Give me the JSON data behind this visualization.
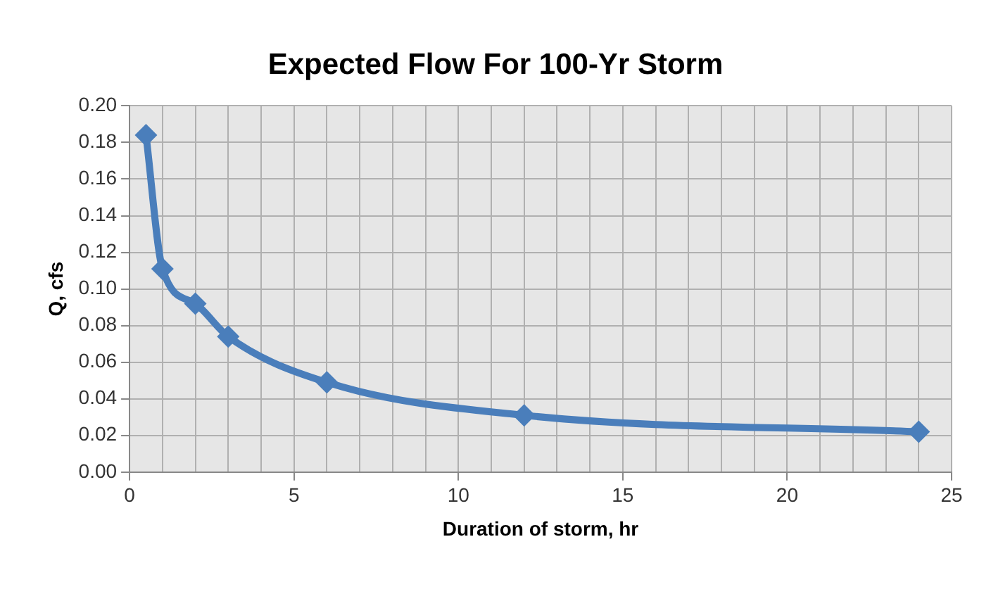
{
  "chart_data": {
    "type": "line",
    "title": "Expected Flow For 100-Yr Storm",
    "xlabel": "Duration of storm, hr",
    "ylabel": "Q, cfs",
    "x": [
      0.5,
      1,
      2,
      3,
      6,
      12,
      24
    ],
    "series": [
      {
        "color": "#4a7ebb",
        "values": [
          0.184,
          0.111,
          0.092,
          0.074,
          0.049,
          0.031,
          0.022
        ]
      }
    ],
    "xlim": [
      0,
      25
    ],
    "xticks": [
      0,
      {
        "value": 1,
        "label": null
      },
      {
        "value": 2,
        "label": null
      },
      {
        "value": 3,
        "label": null
      },
      {
        "value": 4,
        "label": null
      },
      5,
      {
        "value": 6,
        "label": null
      },
      {
        "value": 7,
        "label": null
      },
      {
        "value": 8,
        "label": null
      },
      {
        "value": 9,
        "label": null
      },
      10,
      {
        "value": 11,
        "label": null
      },
      {
        "value": 12,
        "label": null
      },
      {
        "value": 13,
        "label": null
      },
      {
        "value": 14,
        "label": null
      },
      15,
      {
        "value": 16,
        "label": null
      },
      {
        "value": 17,
        "label": null
      },
      {
        "value": 18,
        "label": null
      },
      {
        "value": 19,
        "label": null
      },
      20,
      {
        "value": 21,
        "label": null
      },
      {
        "value": 22,
        "label": null
      },
      {
        "value": 23,
        "label": null
      },
      {
        "value": 24,
        "label": null
      },
      25
    ],
    "ylim": [
      0,
      0.2
    ],
    "yticks": [
      {
        "value": 0,
        "label": "0.00"
      },
      {
        "value": 0.02,
        "label": "0.02"
      },
      {
        "value": 0.04,
        "label": "0.04"
      },
      {
        "value": 0.06,
        "label": "0.06"
      },
      {
        "value": 0.08,
        "label": "0.08"
      },
      {
        "value": 0.1,
        "label": "0.10"
      },
      {
        "value": 0.12,
        "label": "0.12"
      },
      {
        "value": 0.14,
        "label": "0.14"
      },
      {
        "value": 0.16,
        "label": "0.16"
      },
      {
        "value": 0.18,
        "label": "0.18"
      },
      {
        "value": 0.2,
        "label": "0.20"
      }
    ],
    "grid": true,
    "legend": false,
    "marker": "diamond",
    "line_style": "solid"
  }
}
